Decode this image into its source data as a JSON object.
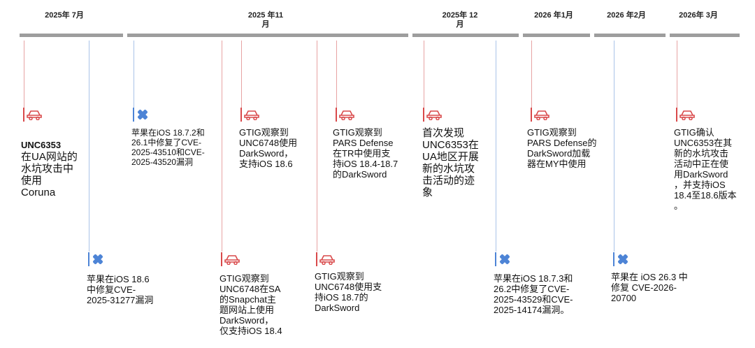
{
  "periods": [
    {
      "id": "p1",
      "label": "2025年\n7月"
    },
    {
      "id": "p2",
      "label": "2025\n年11月"
    },
    {
      "id": "p3",
      "label": "2025年\n12月"
    },
    {
      "id": "p4",
      "label": "2026\n年1月"
    },
    {
      "id": "p5",
      "label": "2026\n年2月"
    },
    {
      "id": "p6",
      "label": "2026年\n3月"
    }
  ],
  "icons": {
    "red": "car-icon",
    "blue": "patch-icon"
  },
  "colors": {
    "red": "#d9494a",
    "blue": "#4d84d6",
    "bar": "#9d9d9d"
  },
  "events": {
    "e1": {
      "title": "UNC6353",
      "text": "在UA网站的\n水坑攻击中\n使用\nCoruna"
    },
    "e2": {
      "text": "苹果在iOS 18.6\n中修复CVE-\n2025-31277漏洞"
    },
    "e3": {
      "text": "苹果在iOS 18.7.2和\n26.1中修复了CVE-\n2025-43510和CVE-\n2025-43520漏洞"
    },
    "e4": {
      "text": "GTIG观察到\nUNC6748在SA\n的Snapchat主\n题网站上使用\nDarkSword，\n仅支持iOS 18.4"
    },
    "e5": {
      "text": "GTIG观察到\nUNC6748使用\nDarkSword，\n支持iOS 18.6"
    },
    "e6": {
      "text": "GTIG观察到\nUNC6748使用支\n持iOS 18.7的\nDarkSword"
    },
    "e7": {
      "text": "GTIG观察到\nPARS Defense\n在TR中使用支\n持iOS 18.4-18.7\n的DarkSword"
    },
    "e8": {
      "text": "首次发现\nUNC6353在\nUA地区开展\n新的水坑攻\n击活动的迹\n象"
    },
    "e9": {
      "text": "苹果在iOS 18.7.3和\n26.2中修复了CVE-\n2025-43529和CVE-\n2025-14174漏洞。"
    },
    "e10": {
      "text": "GTIG观察到\nPARS Defense的\nDarkSword加载\n器在MY中使用"
    },
    "e11": {
      "text": "苹果在 iOS 26.3 中\n修复 CVE-2026-\n20700"
    },
    "e12": {
      "text": "GTIG确认\nUNC6353在其\n新的水坑攻击\n活动中正在使\n用DarkSword\n，并支持iOS\n18.4至18.6版本\n。"
    }
  }
}
